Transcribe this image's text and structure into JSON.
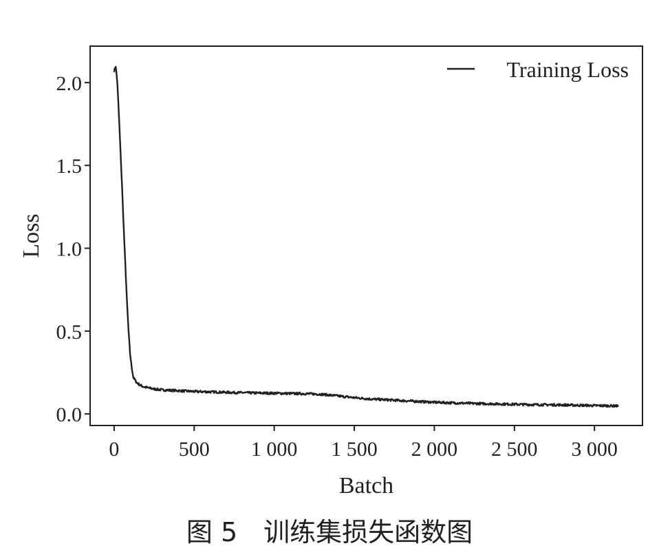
{
  "chart_data": {
    "type": "line",
    "xlabel": "Batch",
    "ylabel": "Loss",
    "xlim": [
      -150,
      3300
    ],
    "ylim": [
      -0.07,
      2.22
    ],
    "xticks": [
      0,
      500,
      1000,
      1500,
      2000,
      2500,
      3000
    ],
    "xtick_labels": [
      "0",
      "500",
      "1 000",
      "1 500",
      "2 000",
      "2 500",
      "3 000"
    ],
    "yticks": [
      0.0,
      0.5,
      1.0,
      1.5,
      2.0
    ],
    "ytick_labels": [
      "0.0",
      "0.5",
      "1.0",
      "1.5",
      "2.0"
    ],
    "grid": false,
    "legend_position": "top-right",
    "series": [
      {
        "name": "Training Loss",
        "color": "#231f20",
        "x": [
          0,
          10,
          20,
          30,
          40,
          50,
          60,
          70,
          80,
          90,
          100,
          110,
          120,
          140,
          160,
          180,
          200,
          250,
          300,
          400,
          500,
          600,
          700,
          800,
          900,
          1000,
          1100,
          1200,
          1300,
          1400,
          1500,
          1600,
          1700,
          1800,
          1900,
          2000,
          2100,
          2200,
          2300,
          2400,
          2500,
          2600,
          2700,
          2800,
          2900,
          3000,
          3100,
          3150
        ],
        "y": [
          2.07,
          2.1,
          2.0,
          1.8,
          1.58,
          1.36,
          1.12,
          0.9,
          0.68,
          0.5,
          0.36,
          0.28,
          0.22,
          0.19,
          0.175,
          0.165,
          0.16,
          0.15,
          0.145,
          0.14,
          0.135,
          0.133,
          0.13,
          0.128,
          0.126,
          0.125,
          0.123,
          0.122,
          0.118,
          0.108,
          0.098,
          0.09,
          0.085,
          0.08,
          0.075,
          0.07,
          0.067,
          0.064,
          0.062,
          0.06,
          0.058,
          0.056,
          0.055,
          0.054,
          0.052,
          0.05,
          0.049,
          0.048
        ]
      }
    ]
  },
  "caption": "图 5　训练集损失函数图"
}
